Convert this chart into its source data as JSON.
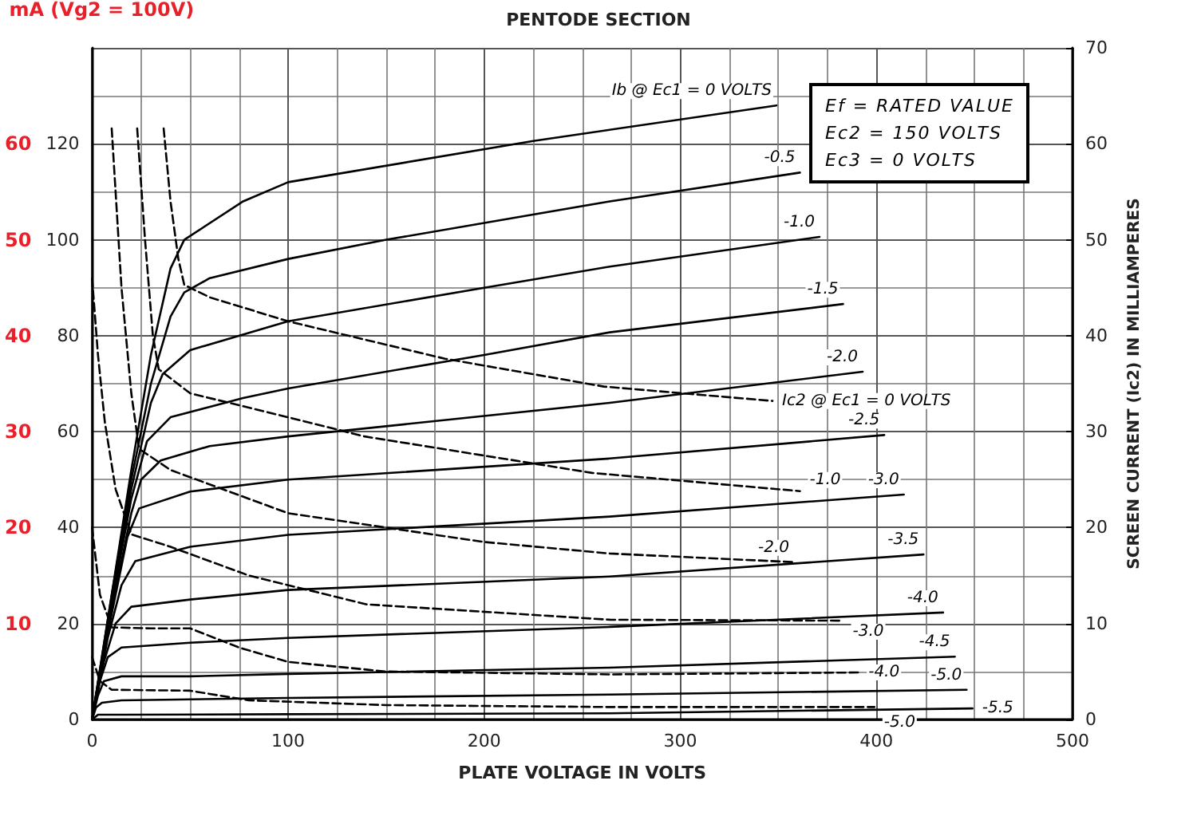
{
  "chart_data": {
    "type": "line",
    "title": "PENTODE SECTION",
    "xlabel": "PLATE VOLTAGE IN VOLTS",
    "y2label": "SCREEN CURRENT (Ic2) IN MILLIAMPERES",
    "y3label": "mA (Vg2 = 100V)",
    "annotations": [
      "Ef = RATED VALUE",
      "Ec2 = 150 VOLTS",
      "Ec3 = 0 VOLTS"
    ],
    "xlim": [
      0,
      500
    ],
    "xticks": [
      0,
      100,
      200,
      300,
      400,
      500
    ],
    "ylim": [
      0,
      140
    ],
    "yticks": [
      0,
      20,
      40,
      60,
      80,
      100,
      120
    ],
    "y2lim": [
      0,
      70
    ],
    "y2ticks": [
      0,
      10,
      20,
      30,
      40,
      50,
      60,
      70
    ],
    "y3lim": [
      0,
      70
    ],
    "y3ticks": [
      10,
      20,
      30,
      40,
      50,
      60
    ],
    "grid": true,
    "legend": false,
    "marker": "none",
    "series": [
      {
        "name": "Ib @ Ec1 = 0 VOLTS",
        "color": "#000000",
        "line_style": "solid",
        "x": [
          0,
          10,
          20,
          30,
          40,
          47,
          77,
          100,
          225,
          349
        ],
        "values": [
          0,
          26,
          52,
          76,
          94,
          100,
          108,
          112,
          120.6,
          128
        ]
      },
      {
        "name": "-0.5",
        "color": "#000000",
        "line_style": "solid",
        "x": [
          0,
          10,
          20,
          30,
          40,
          47,
          60,
          100,
          150,
          264,
          361
        ],
        "values": [
          0,
          26,
          50,
          70,
          84,
          89,
          92,
          96,
          100,
          108,
          114
        ]
      },
      {
        "name": "-1.0",
        "color": "#000000",
        "line_style": "solid",
        "x": [
          0,
          10,
          20,
          30,
          36,
          50,
          100,
          200,
          264,
          371
        ],
        "values": [
          0,
          25,
          48,
          66,
          72,
          77,
          83,
          90,
          94.4,
          100.6
        ]
      },
      {
        "name": "-1.5",
        "color": "#000000",
        "line_style": "solid",
        "x": [
          0,
          10,
          20,
          28,
          40,
          77,
          100,
          200,
          264,
          383
        ],
        "values": [
          0,
          24,
          46,
          58,
          63,
          67,
          69,
          76,
          80.7,
          86.6
        ]
      },
      {
        "name": "-2.0",
        "color": "#000000",
        "line_style": "solid",
        "x": [
          0,
          10,
          20,
          25,
          35,
          60,
          100,
          264,
          393
        ],
        "values": [
          0,
          23,
          43,
          50,
          54,
          57,
          59,
          66,
          72.5
        ]
      },
      {
        "name": "-2.5",
        "color": "#000000",
        "line_style": "solid",
        "x": [
          0,
          10,
          18,
          24,
          50,
          100,
          264,
          404
        ],
        "values": [
          0,
          22,
          38,
          44,
          47.5,
          50,
          54.4,
          59.3
        ]
      },
      {
        "name": "-3.0",
        "color": "#000000",
        "line_style": "solid",
        "x": [
          0,
          8,
          15,
          22,
          50,
          100,
          264,
          414
        ],
        "values": [
          0,
          17,
          28,
          33,
          36,
          38.5,
          42.3,
          46.9
        ]
      },
      {
        "name": "-3.5",
        "color": "#000000",
        "line_style": "solid",
        "x": [
          0,
          6,
          12,
          20,
          50,
          100,
          264,
          424
        ],
        "values": [
          0,
          12,
          20,
          23.5,
          25,
          27,
          29.8,
          34.4
        ]
      },
      {
        "name": "-4.0",
        "color": "#000000",
        "line_style": "solid",
        "x": [
          0,
          4,
          8,
          15,
          50,
          100,
          264,
          434
        ],
        "values": [
          0,
          8,
          13,
          15,
          16,
          17,
          19.3,
          22.3
        ]
      },
      {
        "name": "-4.5",
        "color": "#000000",
        "line_style": "solid",
        "x": [
          0,
          3,
          6,
          15,
          50,
          100,
          264,
          440
        ],
        "values": [
          0,
          5,
          8,
          9,
          9,
          9.5,
          10.8,
          13.1
        ]
      },
      {
        "name": "-5.0",
        "color": "#000000",
        "line_style": "solid",
        "x": [
          0,
          2,
          5,
          15,
          100,
          264,
          446
        ],
        "values": [
          0,
          2.5,
          3.5,
          4,
          4.5,
          5.2,
          6.2
        ]
      },
      {
        "name": "-5.5",
        "color": "#000000",
        "line_style": "solid",
        "x": [
          0,
          3,
          15,
          100,
          264,
          449
        ],
        "values": [
          0,
          1,
          1,
          1.1,
          1.3,
          2.3
        ]
      },
      {
        "name": "Ic2 @ Ec1 = 0 VOLTS",
        "color": "#000000",
        "line_style": "dashed",
        "axis": "y2",
        "x": [
          36.5,
          40,
          44,
          47,
          60,
          100,
          180,
          261,
          347
        ],
        "values": [
          61.6,
          54,
          48,
          45.3,
          44,
          41.5,
          37.6,
          34.7,
          33.2
        ]
      },
      {
        "name": "-1.0",
        "color": "#000000",
        "line_style": "dashed",
        "axis": "y2",
        "x": [
          23,
          27,
          31,
          34,
          50,
          100,
          139,
          255,
          361
        ],
        "values": [
          61.6,
          50,
          40,
          36.5,
          34,
          31.5,
          29.5,
          25.7,
          23.8
        ]
      },
      {
        "name": "-2.0",
        "color": "#000000",
        "line_style": "dashed",
        "axis": "y2",
        "x": [
          10,
          15,
          20,
          24,
          40,
          100,
          200,
          264,
          358
        ],
        "values": [
          61.6,
          45,
          34,
          28.2,
          26,
          21.5,
          18.5,
          17.3,
          16.4
        ]
      },
      {
        "name": "-3.0",
        "color": "#000000",
        "line_style": "dashed",
        "axis": "y2",
        "x": [
          0,
          3,
          6.5,
          12,
          20,
          40,
          80,
          140,
          264,
          383
        ],
        "values": [
          46,
          38,
          31,
          24,
          19.3,
          18,
          15,
          12,
          10.4,
          10.3
        ]
      },
      {
        "name": "-4.0",
        "color": "#000000",
        "line_style": "dashed",
        "axis": "y2",
        "x": [
          0,
          4,
          10,
          30,
          50,
          75,
          100,
          150,
          264,
          391
        ],
        "values": [
          20,
          13,
          9.6,
          9.5,
          9.5,
          7.5,
          6,
          5,
          4.7,
          4.9
        ]
      },
      {
        "name": "-5.0",
        "color": "#000000",
        "line_style": "dashed",
        "axis": "y2",
        "x": [
          0,
          4,
          10,
          50,
          80,
          150,
          264,
          399
        ],
        "values": [
          6.5,
          4,
          3.1,
          3,
          2,
          1.5,
          1.3,
          1.3
        ]
      }
    ]
  }
}
